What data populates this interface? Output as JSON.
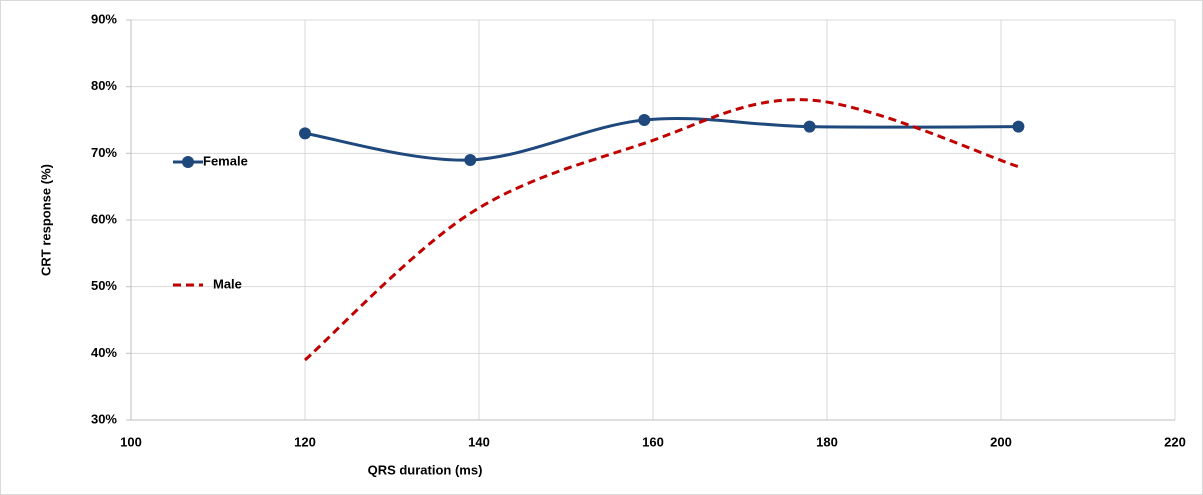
{
  "chart_data": {
    "type": "line",
    "x_label": "QRS duration (ms)",
    "y_label": "CRT response (%)",
    "xlim": [
      100,
      220
    ],
    "xticks": [
      100,
      120,
      140,
      160,
      180,
      200,
      220
    ],
    "ylim": [
      30,
      90
    ],
    "yticks": [
      {
        "value": 30,
        "label": "30%"
      },
      {
        "value": 40,
        "label": "40%"
      },
      {
        "value": 50,
        "label": "50%"
      },
      {
        "value": 60,
        "label": "60%"
      },
      {
        "value": 70,
        "label": "70%"
      },
      {
        "value": 80,
        "label": "80%"
      },
      {
        "value": 90,
        "label": "90%"
      }
    ],
    "grid": true,
    "legend": "left",
    "smooth": true,
    "series": [
      {
        "name": "Female",
        "color": "#1f497d",
        "dash": false,
        "markers": true,
        "x": [
          120,
          139,
          159,
          178,
          202
        ],
        "values": [
          73,
          69,
          75,
          74,
          74
        ]
      },
      {
        "name": "Male",
        "color": "#c00000",
        "dash": true,
        "markers": false,
        "x": [
          120,
          139,
          159,
          178,
          202
        ],
        "values": [
          39,
          61,
          71.5,
          78,
          68
        ]
      }
    ]
  }
}
